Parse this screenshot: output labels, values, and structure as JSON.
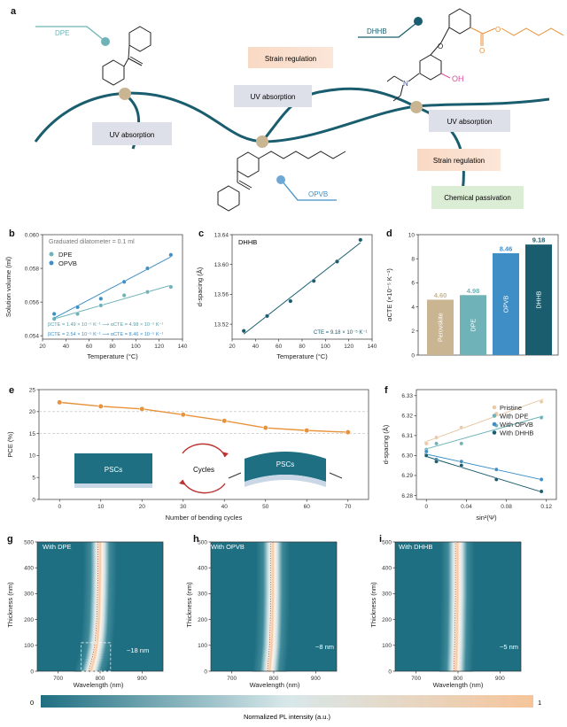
{
  "panel_a": {
    "label": "a",
    "molecules": {
      "dpe": "DPE",
      "opvb": "OPVB",
      "dhhb": "DHHB"
    },
    "oh_label": "OH",
    "n_label": "N",
    "o_label": "O",
    "boxes": {
      "uv1": "UV absorption",
      "strain1": "Strain regulation",
      "uv2": "UV absorption",
      "uv3": "UV absorption",
      "strain2": "Strain regulation",
      "passivation": "Chemical passivation"
    }
  },
  "panel_b": {
    "label": "b",
    "note": "Graduated dilatometer = 0.1 ml",
    "eq_dpe": "βCTE = 1.49 × 10⁻⁵ K⁻¹ ⟶ αCTE = 4.98 × 10⁻⁵ K⁻¹",
    "eq_opvb": "βCTE = 2.54 × 10⁻⁵ K⁻¹ ⟶ αCTE = 8.46 × 10⁻⁵ K⁻¹",
    "xlabel": "Temperature (°C)",
    "ylabel": "Solution volume (ml)",
    "xticks": [
      "20",
      "40",
      "60",
      "80",
      "100",
      "120",
      "140"
    ],
    "yticks": [
      "0.054",
      "0.056",
      "0.058",
      "0.060"
    ]
  },
  "panel_c": {
    "label": "c",
    "title": "DHHB",
    "cte": "CTE = 9.18 × 10⁻⁵ K⁻¹",
    "xlabel": "Temperature (°C)",
    "ylabel": "d-spacing (Å)",
    "xticks": [
      "20",
      "40",
      "60",
      "80",
      "100",
      "120",
      "140"
    ],
    "yticks": [
      "13.52",
      "13.56",
      "13.60",
      "13.64"
    ]
  },
  "panel_d": {
    "label": "d",
    "ylabel": "αCTE (×10⁻⁵ K⁻¹)",
    "yticks": [
      "0",
      "2",
      "4",
      "6",
      "8",
      "10"
    ]
  },
  "panel_e": {
    "label": "e",
    "xlabel": "Number of bending cycles",
    "ylabel": "PCE (%)",
    "xticks": [
      "0",
      "10",
      "20",
      "30",
      "40",
      "50",
      "60",
      "70"
    ],
    "yticks": [
      "0",
      "5",
      "10",
      "15",
      "20",
      "25"
    ],
    "inset": {
      "flat": "PSCs",
      "cycles": "Cycles",
      "bent": "PSCs"
    }
  },
  "panel_f": {
    "label": "f",
    "xlabel": "sin²(Ψ)",
    "ylabel": "d-spacing (Å)",
    "xticks": [
      "0",
      "0.04",
      "0.08",
      "0.12"
    ],
    "yticks": [
      "6.28",
      "6.29",
      "6.30",
      "6.31",
      "6.32",
      "6.33"
    ],
    "legend": [
      "Pristine",
      "With DPE",
      "With OPVB",
      "With DHHB"
    ]
  },
  "panel_g": {
    "label": "g",
    "title": "With DPE",
    "note": "~18 nm"
  },
  "panel_h": {
    "label": "h",
    "title": "With OPVB",
    "note": "~8 nm"
  },
  "panel_i": {
    "label": "i",
    "title": "With DHHB",
    "note": "~5 nm"
  },
  "pl_axes": {
    "xlabel": "Wavelength (nm)",
    "ylabel": "Thickness (nm)",
    "xticks": [
      "700",
      "800",
      "900"
    ],
    "yticks": [
      "0",
      "100",
      "200",
      "300",
      "400",
      "500"
    ]
  },
  "colorbar": {
    "min": "0",
    "max": "1",
    "label": "Normalized PL intensity (a.u.)"
  },
  "colors": {
    "teal": "#1f6f82",
    "light_teal": "#6fb3b8",
    "blue": "#3f8fc6",
    "dark_teal": "#1a5d6e",
    "orange": "#e8923a",
    "sand": "#c9b592"
  },
  "chart_data": [
    {
      "id": "b",
      "type": "scatter",
      "xlabel": "Temperature (°C)",
      "ylabel": "Solution volume (ml)",
      "xlim": [
        20,
        140
      ],
      "ylim": [
        0.0538,
        0.06
      ],
      "series": [
        {
          "name": "DPE",
          "x": [
            30,
            50,
            70,
            90,
            110,
            130
          ],
          "y": [
            0.055,
            0.0553,
            0.0558,
            0.0564,
            0.0566,
            0.0569
          ]
        },
        {
          "name": "OPVB",
          "x": [
            30,
            50,
            70,
            90,
            110,
            130
          ],
          "y": [
            0.0553,
            0.0557,
            0.0562,
            0.0572,
            0.058,
            0.0588
          ]
        }
      ]
    },
    {
      "id": "c",
      "type": "scatter",
      "title": "DHHB",
      "xlabel": "Temperature (°C)",
      "ylabel": "d-spacing (Å)",
      "xlim": [
        20,
        140
      ],
      "ylim": [
        13.5,
        13.64
      ],
      "series": [
        {
          "name": "DHHB",
          "x": [
            30,
            50,
            70,
            90,
            110,
            130
          ],
          "y": [
            13.511,
            13.531,
            13.551,
            13.578,
            13.604,
            13.633
          ]
        }
      ]
    },
    {
      "id": "d",
      "type": "bar",
      "ylabel": "αCTE (×10⁻⁵ K⁻¹)",
      "ylim": [
        0,
        10
      ],
      "categories": [
        "Perovskite",
        "DPE",
        "OPVB",
        "DHHB"
      ],
      "values": [
        4.6,
        4.98,
        8.46,
        9.18
      ],
      "value_labels": [
        "4.60",
        "4.98",
        "8.46",
        "9.18"
      ]
    },
    {
      "id": "e",
      "type": "line",
      "xlabel": "Number of bending cycles",
      "ylabel": "PCE (%)",
      "xlim": [
        -5,
        75
      ],
      "ylim": [
        0,
        25
      ],
      "x": [
        0,
        10,
        20,
        30,
        40,
        50,
        60,
        70
      ],
      "series": [
        {
          "name": "PCE",
          "values": [
            22.1,
            21.2,
            20.6,
            19.3,
            17.9,
            16.3,
            15.7,
            15.3
          ]
        }
      ]
    },
    {
      "id": "f",
      "type": "scatter",
      "xlabel": "sin²(Ψ)",
      "ylabel": "d-spacing (Å)",
      "xlim": [
        -0.01,
        0.13
      ],
      "ylim": [
        6.278,
        6.333
      ],
      "series": [
        {
          "name": "Pristine",
          "x": [
            0,
            0.01,
            0.035,
            0.07,
            0.115
          ],
          "y": [
            6.306,
            6.309,
            6.314,
            6.321,
            6.327
          ]
        },
        {
          "name": "With DPE",
          "x": [
            0,
            0.01,
            0.035,
            0.07,
            0.115
          ],
          "y": [
            6.303,
            6.306,
            6.306,
            6.315,
            6.319
          ]
        },
        {
          "name": "With OPVB",
          "x": [
            0,
            0.01,
            0.035,
            0.07,
            0.115
          ],
          "y": [
            6.302,
            6.298,
            6.297,
            6.293,
            6.288
          ]
        },
        {
          "name": "With DHHB",
          "x": [
            0,
            0.01,
            0.035,
            0.07,
            0.115
          ],
          "y": [
            6.3,
            6.297,
            6.295,
            6.288,
            6.282
          ]
        }
      ]
    },
    {
      "id": "g",
      "type": "heatmap",
      "title": "With DPE",
      "xlabel": "Wavelength (nm)",
      "ylabel": "Thickness (nm)",
      "xlim": [
        650,
        950
      ],
      "ylim": [
        0,
        500
      ],
      "peak_nm": {
        "thickness": [
          0,
          50,
          100,
          150,
          200,
          300,
          400,
          500
        ],
        "wavelength": [
          778,
          786,
          792,
          795,
          797,
          799,
          800,
          800
        ]
      },
      "shift": "~18 nm"
    },
    {
      "id": "h",
      "type": "heatmap",
      "title": "With OPVB",
      "xlabel": "Wavelength (nm)",
      "ylabel": "Thickness (nm)",
      "xlim": [
        650,
        950
      ],
      "ylim": [
        0,
        500
      ],
      "peak_nm": {
        "thickness": [
          0,
          100,
          200,
          300,
          400,
          500
        ],
        "wavelength": [
          790,
          795,
          797,
          798,
          798,
          798
        ]
      },
      "shift": "~8 nm"
    },
    {
      "id": "i",
      "type": "heatmap",
      "title": "With DHHB",
      "xlabel": "Wavelength (nm)",
      "ylabel": "Thickness (nm)",
      "xlim": [
        650,
        950
      ],
      "ylim": [
        0,
        500
      ],
      "peak_nm": {
        "thickness": [
          0,
          100,
          200,
          300,
          400,
          500
        ],
        "wavelength": [
          795,
          797,
          798,
          799,
          799,
          799
        ]
      },
      "shift": "~5 nm"
    }
  ]
}
